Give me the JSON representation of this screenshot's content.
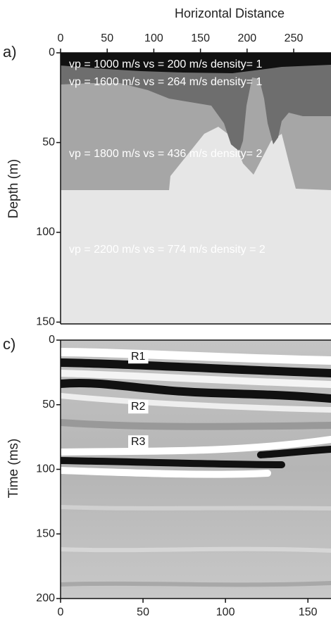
{
  "chart_data": [
    {
      "type": "image",
      "panel": "a)",
      "title": "Horizontal Distance",
      "ylabel": "Depth (m)",
      "xlim": [
        0,
        290
      ],
      "ylim": [
        0,
        151
      ],
      "xticks": [
        0,
        50,
        100,
        150,
        200,
        250
      ],
      "yticks": [
        0,
        50,
        100,
        150
      ],
      "annotations": [
        "vp = 1000 m/s vs = 200 m/s density= 1",
        "vp = 1600 m/s vs = 264 m/s density= 1",
        "vp = 1800 m/s vs = 436 m/s density= 2",
        "vp = 2200 m/s vs = 774 m/s density = 2"
      ]
    },
    {
      "type": "image",
      "panel": "c)",
      "ylabel": "Time (ms)",
      "xlim": [
        0,
        164
      ],
      "ylim": [
        0,
        200
      ],
      "xticks": [
        0,
        50,
        100,
        150
      ],
      "yticks": [
        0,
        50,
        100,
        150,
        200
      ],
      "annotations": [
        "R1",
        "R2",
        "R3"
      ]
    }
  ]
}
